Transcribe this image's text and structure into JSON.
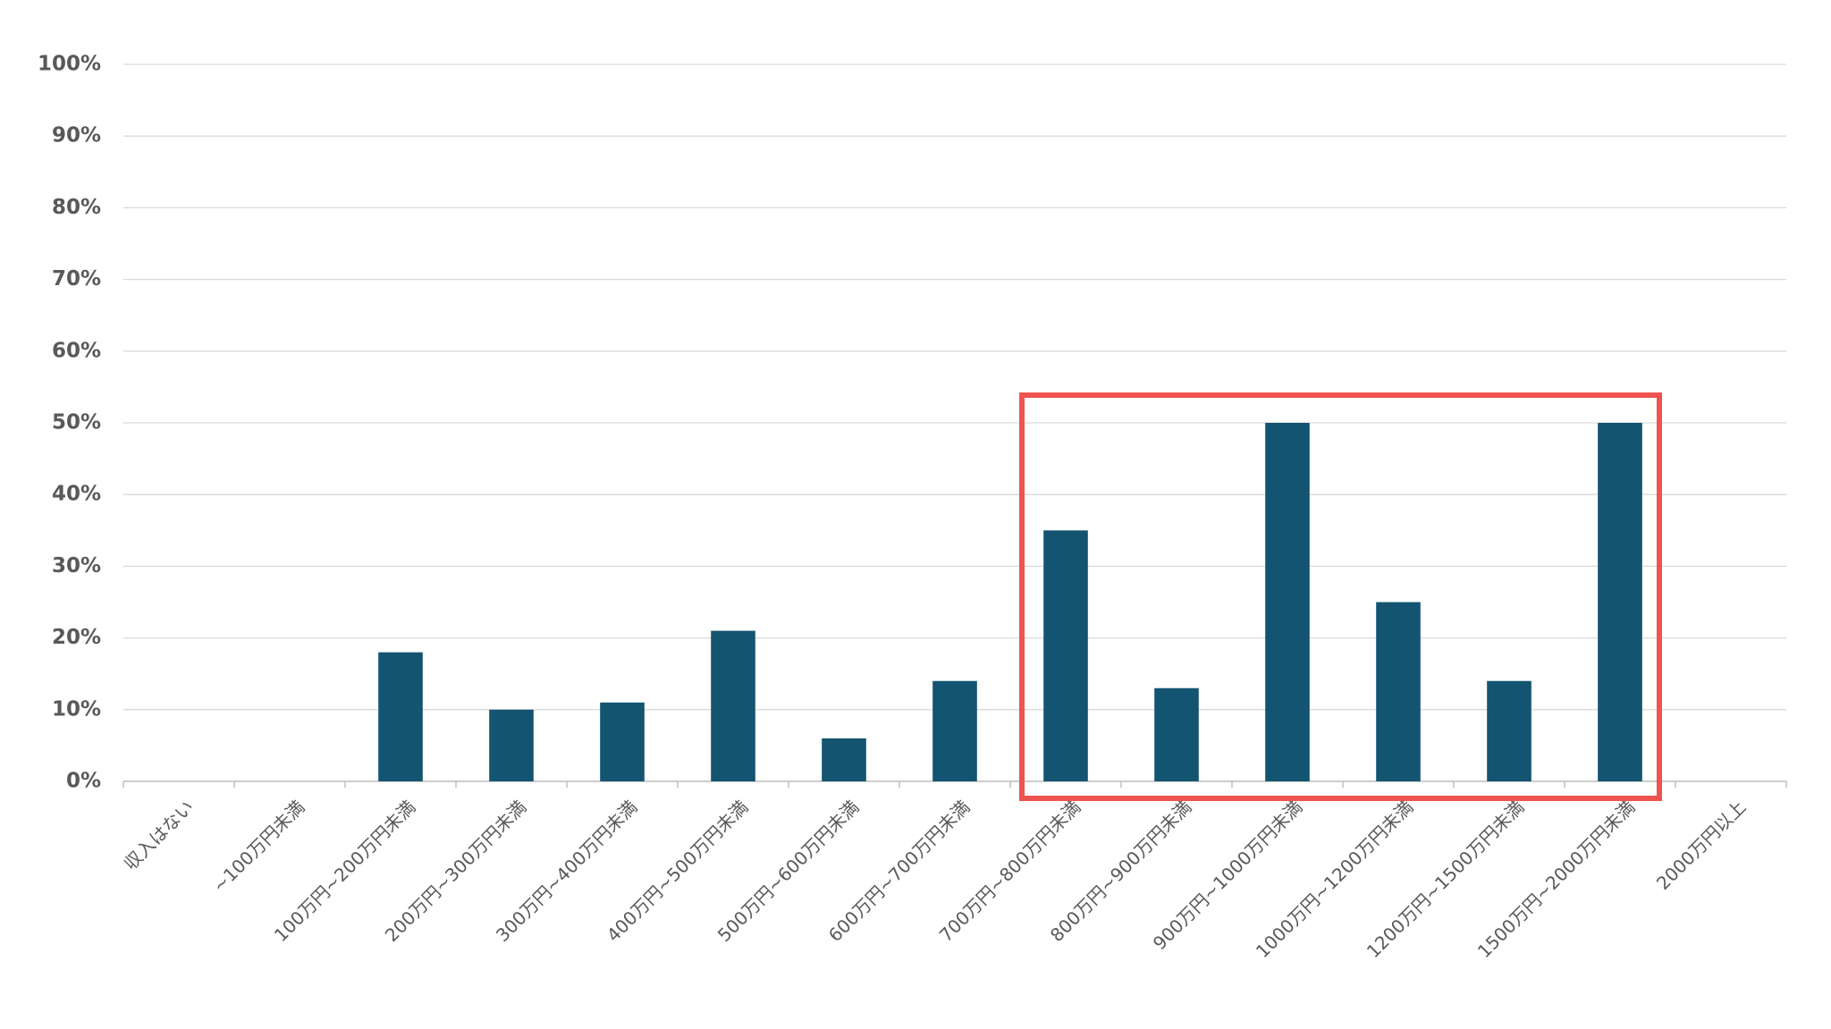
{
  "chart_data": {
    "type": "bar",
    "categories": [
      "収入はない",
      "~100万円未満",
      "100万円~200万円未満",
      "200万円~300万円未満",
      "300万円~400万円未満",
      "400万円~500万円未満",
      "500万円~600万円未満",
      "600万円~700万円未満",
      "700万円~800万円未満",
      "800万円~900万円未満",
      "900万円~1000万円未満",
      "1000万円~1200万円未満",
      "1200万円~1500万円未満",
      "1500万円~2000万円未満",
      "2000万円以上"
    ],
    "values": [
      0,
      0,
      18,
      10,
      11,
      21,
      6,
      14,
      35,
      13,
      50,
      25,
      14,
      50,
      0
    ],
    "color": "#135470",
    "ylim": [
      0,
      100
    ],
    "yticks": [
      {
        "value": 0,
        "label": "0%"
      },
      {
        "value": 10,
        "label": "10%"
      },
      {
        "value": 20,
        "label": "20%"
      },
      {
        "value": 30,
        "label": "30%"
      },
      {
        "value": 40,
        "label": "40%"
      },
      {
        "value": 50,
        "label": "50%"
      },
      {
        "value": 60,
        "label": "60%"
      },
      {
        "value": 70,
        "label": "70%"
      },
      {
        "value": 80,
        "label": "80%"
      },
      {
        "value": 90,
        "label": "90%"
      },
      {
        "value": 100,
        "label": "100%"
      }
    ],
    "grid": true
  }
}
